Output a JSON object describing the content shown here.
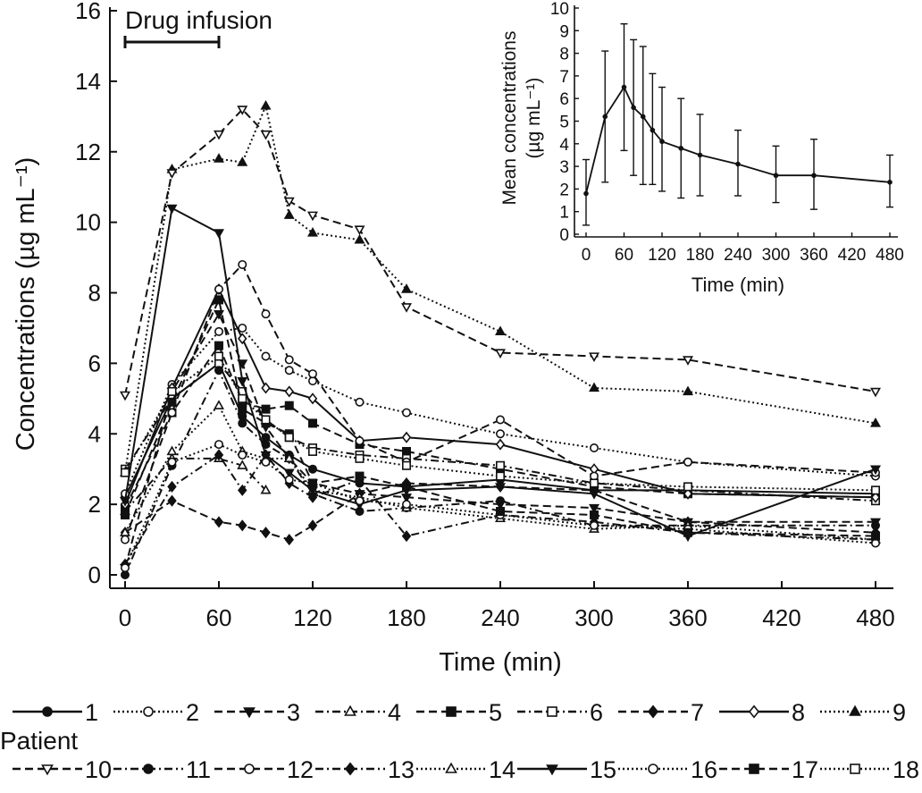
{
  "chart_data": [
    {
      "type": "line",
      "title": "",
      "xlabel": "Time (min)",
      "ylabel": "Concentrations (µg mL⁻¹)",
      "xlim": [
        0,
        480
      ],
      "ylim": [
        0,
        16
      ],
      "xticks": [
        0,
        60,
        120,
        180,
        240,
        300,
        360,
        420,
        480
      ],
      "yticks": [
        0,
        2,
        4,
        6,
        8,
        10,
        12,
        14,
        16
      ],
      "annotation": "Drug infusion",
      "annotation_range": [
        0,
        60
      ],
      "legend_title": "Patient",
      "legend_position": "bottom",
      "series": [
        {
          "name": "1",
          "marker": "circle",
          "fill": "filled",
          "dash": "solid",
          "x": [
            0,
            30,
            60,
            75,
            90,
            105,
            120,
            150,
            180,
            240,
            300,
            360,
            480
          ],
          "y": [
            2.2,
            5.0,
            6.0,
            4.5,
            3.9,
            3.4,
            3.0,
            2.6,
            2.5,
            2.7,
            2.4,
            2.4,
            2.3
          ]
        },
        {
          "name": "2",
          "marker": "circle",
          "fill": "open",
          "dash": "dotted",
          "x": [
            0,
            30,
            60,
            75,
            90,
            105,
            120,
            150,
            180,
            240,
            300,
            360,
            480
          ],
          "y": [
            2.3,
            5.4,
            6.9,
            7.0,
            6.2,
            5.8,
            5.5,
            4.9,
            4.6,
            4.0,
            3.6,
            3.2,
            2.8
          ]
        },
        {
          "name": "3",
          "marker": "triangle-down",
          "fill": "filled",
          "dash": "dashed",
          "x": [
            0,
            30,
            60,
            75,
            90,
            105,
            120,
            150,
            180,
            240,
            300,
            360,
            480
          ],
          "y": [
            0.2,
            5.2,
            7.4,
            6.0,
            4.2,
            3.3,
            2.6,
            2.3,
            2.2,
            2.0,
            1.9,
            1.5,
            1.5
          ]
        },
        {
          "name": "4",
          "marker": "triangle",
          "fill": "open",
          "dash": "dashdot",
          "x": [
            0,
            30,
            60,
            75,
            90
          ],
          "y": [
            1.8,
            3.3,
            3.3,
            3.1,
            2.4
          ]
        },
        {
          "name": "5",
          "marker": "square",
          "fill": "filled",
          "dash": "dashed",
          "x": [
            0,
            30,
            60,
            75,
            90,
            105,
            120,
            150,
            180,
            240,
            300,
            360,
            480
          ],
          "y": [
            1.9,
            4.6,
            6.5,
            4.9,
            4.7,
            4.8,
            4.3,
            3.7,
            3.5,
            3.0,
            2.5,
            2.3,
            2.2
          ]
        },
        {
          "name": "6",
          "marker": "square",
          "fill": "open",
          "dash": "dashdot",
          "x": [
            0,
            30,
            60,
            75,
            90,
            105,
            120,
            150,
            180,
            240,
            300,
            360,
            480
          ],
          "y": [
            3.0,
            5.0,
            6.0,
            5.2,
            4.4,
            3.9,
            3.6,
            3.4,
            3.3,
            3.1,
            2.6,
            2.4,
            2.1
          ]
        },
        {
          "name": "7",
          "marker": "diamond",
          "fill": "filled",
          "dash": "dashed",
          "x": [
            0,
            30,
            60,
            75,
            90,
            105,
            120,
            150,
            180,
            240,
            300,
            360,
            480
          ],
          "y": [
            1.2,
            2.1,
            1.5,
            1.4,
            1.2,
            1.0,
            1.4,
            2.3,
            2.6,
            2.5,
            2.4,
            1.5,
            1.2
          ]
        },
        {
          "name": "8",
          "marker": "diamond",
          "fill": "open",
          "dash": "solid",
          "x": [
            0,
            30,
            60,
            75,
            90,
            105,
            120,
            150,
            180,
            240,
            300,
            360,
            480
          ],
          "y": [
            2.0,
            5.3,
            8.1,
            6.7,
            5.3,
            5.2,
            5.0,
            3.8,
            3.9,
            3.7,
            3.0,
            2.3,
            2.2
          ]
        },
        {
          "name": "9",
          "marker": "triangle",
          "fill": "filled",
          "dash": "dotted",
          "x": [
            0,
            30,
            60,
            75,
            90,
            105,
            120,
            150,
            180,
            240,
            300,
            360,
            480
          ],
          "y": [
            2.9,
            11.5,
            11.8,
            11.7,
            13.3,
            10.2,
            9.7,
            9.5,
            8.1,
            6.9,
            5.3,
            5.2,
            4.3
          ]
        },
        {
          "name": "10",
          "marker": "triangle-down",
          "fill": "open",
          "dash": "dashed",
          "x": [
            0,
            30,
            60,
            75,
            90,
            105,
            120,
            150,
            180,
            240,
            300,
            360,
            480
          ],
          "y": [
            5.1,
            11.4,
            12.5,
            13.2,
            12.5,
            10.6,
            10.2,
            9.8,
            7.6,
            6.3,
            6.2,
            6.1,
            5.2
          ]
        },
        {
          "name": "11",
          "marker": "circle",
          "fill": "filled",
          "dash": "dashdot",
          "x": [
            0,
            30,
            60,
            75,
            90,
            105,
            120,
            150,
            180,
            240,
            300,
            360,
            480
          ],
          "y": [
            0.0,
            3.1,
            5.8,
            4.3,
            3.7,
            3.3,
            2.3,
            1.8,
            1.9,
            2.1,
            1.4,
            1.4,
            1.4
          ]
        },
        {
          "name": "12",
          "marker": "circle",
          "fill": "open",
          "dash": "dashed",
          "x": [
            0,
            30,
            60,
            75,
            90,
            105,
            120,
            150,
            180,
            240,
            300,
            360,
            480
          ],
          "y": [
            1.0,
            4.6,
            8.1,
            8.8,
            7.4,
            6.1,
            5.7,
            3.8,
            3.2,
            4.4,
            2.8,
            3.2,
            2.9
          ]
        },
        {
          "name": "13",
          "marker": "diamond",
          "fill": "filled",
          "dash": "dashdot",
          "x": [
            0,
            30,
            60,
            75,
            90,
            105,
            120,
            150,
            180,
            240,
            300,
            360,
            480
          ],
          "y": [
            0.3,
            2.5,
            3.4,
            2.4,
            3.4,
            2.6,
            2.2,
            2.7,
            1.1,
            1.7,
            1.5,
            1.2,
            1.0
          ]
        },
        {
          "name": "14",
          "marker": "triangle",
          "fill": "open",
          "dash": "dotted",
          "x": [
            0,
            30,
            60,
            75,
            90,
            105,
            120,
            150,
            180,
            240,
            300,
            360,
            480
          ],
          "y": [
            1.2,
            3.5,
            4.8,
            3.5,
            3.3,
            3.3,
            2.4,
            2.2,
            1.9,
            1.6,
            1.3,
            1.4,
            1.0
          ]
        },
        {
          "name": "15",
          "marker": "triangle-down",
          "fill": "filled",
          "dash": "solid",
          "x": [
            0,
            30,
            60,
            75,
            90,
            105,
            120,
            150,
            180,
            240,
            300,
            360,
            480
          ],
          "y": [
            2.1,
            10.4,
            9.7,
            5.5,
            3.4,
            2.9,
            2.4,
            2.0,
            2.4,
            2.5,
            2.3,
            1.1,
            3.0
          ]
        },
        {
          "name": "16",
          "marker": "circle",
          "fill": "open",
          "dash": "dotted",
          "x": [
            0,
            30,
            60,
            75,
            90,
            105,
            120,
            150,
            180,
            240,
            300,
            360,
            480
          ],
          "y": [
            0.2,
            3.2,
            3.7,
            3.4,
            3.2,
            2.7,
            2.6,
            2.1,
            2.0,
            1.7,
            1.4,
            1.3,
            0.9
          ]
        },
        {
          "name": "17",
          "marker": "square",
          "fill": "filled",
          "dash": "dashed",
          "x": [
            0,
            30,
            60,
            75,
            90,
            105,
            120,
            150,
            180,
            240,
            300,
            360,
            480
          ],
          "y": [
            1.7,
            4.9,
            7.8,
            4.7,
            4.3,
            4.0,
            2.6,
            2.8,
            2.5,
            1.8,
            1.7,
            1.2,
            1.1
          ]
        },
        {
          "name": "18",
          "marker": "square",
          "fill": "open",
          "dash": "dotted",
          "x": [
            0,
            30,
            60,
            75,
            90,
            105,
            120,
            150,
            180,
            240,
            300,
            360,
            480
          ],
          "y": [
            2.9,
            5.2,
            6.2,
            5.0,
            4.4,
            3.9,
            3.5,
            3.3,
            3.1,
            2.8,
            2.6,
            2.5,
            2.4
          ]
        }
      ]
    },
    {
      "type": "line",
      "title": "",
      "xlabel": "Time (min)",
      "ylabel_line1": "Mean concentrations",
      "ylabel_line2": "(µg mL⁻¹)",
      "xlim": [
        0,
        480
      ],
      "ylim": [
        0,
        10
      ],
      "xticks": [
        0,
        60,
        120,
        180,
        240,
        300,
        360,
        420,
        480
      ],
      "yticks": [
        0,
        1,
        2,
        3,
        4,
        5,
        6,
        7,
        8,
        9,
        10
      ],
      "series": [
        {
          "name": "Mean",
          "x": [
            0,
            30,
            60,
            75,
            90,
            105,
            120,
            150,
            180,
            240,
            300,
            360,
            480
          ],
          "y": [
            1.8,
            5.2,
            6.5,
            5.6,
            5.2,
            4.6,
            4.1,
            3.8,
            3.5,
            3.1,
            2.6,
            2.6,
            2.3
          ],
          "error_low": [
            0.4,
            2.3,
            3.7,
            2.6,
            2.2,
            2.2,
            1.9,
            1.6,
            1.7,
            1.7,
            1.4,
            1.1,
            1.2
          ],
          "error_high": [
            3.3,
            8.1,
            9.3,
            8.6,
            8.3,
            7.1,
            6.5,
            6.0,
            5.3,
            4.6,
            3.9,
            4.2,
            3.5
          ]
        }
      ]
    }
  ]
}
